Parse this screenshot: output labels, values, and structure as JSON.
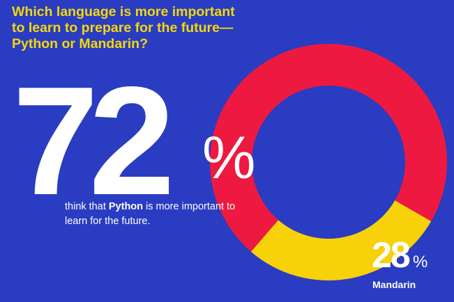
{
  "question": "Which language is more important to learn to prepare for the future—Python or Mandarin?",
  "colors": {
    "background": "#2a3cc1",
    "python": "#ee1940",
    "mandarin": "#f7d10a",
    "question_text": "#f2d80f",
    "text": "#ffffff"
  },
  "python": {
    "value": "72",
    "percent_sign": "%",
    "caption_before": "think that ",
    "caption_bold": "Python",
    "caption_after": " is more important to learn for the future."
  },
  "mandarin": {
    "value": "28",
    "percent_sign": "%",
    "label": "Mandarin"
  },
  "chart_data": {
    "type": "pie",
    "variant": "donut",
    "title": "Which language is more important to learn to prepare for the future—Python or Mandarin?",
    "categories": [
      "Python",
      "Mandarin"
    ],
    "values": [
      72,
      28
    ],
    "unit": "%"
  }
}
